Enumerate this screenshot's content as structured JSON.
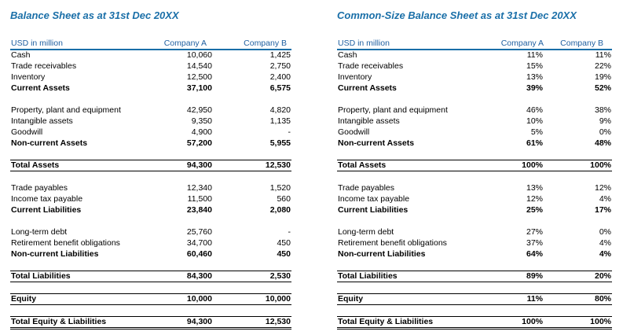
{
  "left": {
    "title": "Balance Sheet as at 31st Dec 20XX",
    "header": {
      "label": "USD in million",
      "a": "Company A",
      "b": "Company B"
    },
    "rows": [
      {
        "label": "Cash",
        "a": "10,060",
        "b": "1,425"
      },
      {
        "label": "Trade receivables",
        "a": "14,540",
        "b": "2,750"
      },
      {
        "label": "Inventory",
        "a": "12,500",
        "b": "2,400"
      },
      {
        "label": "Current Assets",
        "a": "37,100",
        "b": "6,575"
      },
      {
        "label": "Property, plant and equipment",
        "a": "42,950",
        "b": "4,820"
      },
      {
        "label": "Intangible assets",
        "a": "9,350",
        "b": "1,135"
      },
      {
        "label": "Goodwill",
        "a": "4,900",
        "b": "-"
      },
      {
        "label": "Non-current Assets",
        "a": "57,200",
        "b": "5,955"
      },
      {
        "label": "Total Assets",
        "a": "94,300",
        "b": "12,530"
      },
      {
        "label": "Trade payables",
        "a": "12,340",
        "b": "1,520"
      },
      {
        "label": "Income tax payable",
        "a": "11,500",
        "b": "560"
      },
      {
        "label": "Current Liabilities",
        "a": "23,840",
        "b": "2,080"
      },
      {
        "label": "Long-term debt",
        "a": "25,760",
        "b": "-"
      },
      {
        "label": "Retirement benefit obligations",
        "a": "34,700",
        "b": "450"
      },
      {
        "label": "Non-current Liabilities",
        "a": "60,460",
        "b": "450"
      },
      {
        "label": "Total Liabilities",
        "a": "84,300",
        "b": "2,530"
      },
      {
        "label": "Equity",
        "a": "10,000",
        "b": "10,000"
      },
      {
        "label": "Total Equity & Liabilities",
        "a": "94,300",
        "b": "12,530"
      }
    ]
  },
  "right": {
    "title": "Common-Size Balance Sheet as at 31st Dec 20XX",
    "header": {
      "label": "USD in million",
      "a": "Company A",
      "b": "Company B"
    },
    "rows": [
      {
        "label": "Cash",
        "a": "11%",
        "b": "11%"
      },
      {
        "label": "Trade receivables",
        "a": "15%",
        "b": "22%"
      },
      {
        "label": "Inventory",
        "a": "13%",
        "b": "19%"
      },
      {
        "label": "Current Assets",
        "a": "39%",
        "b": "52%"
      },
      {
        "label": "Property, plant and equipment",
        "a": "46%",
        "b": "38%"
      },
      {
        "label": "Intangible assets",
        "a": "10%",
        "b": "9%"
      },
      {
        "label": "Goodwill",
        "a": "5%",
        "b": "0%"
      },
      {
        "label": "Non-current Assets",
        "a": "61%",
        "b": "48%"
      },
      {
        "label": "Total Assets",
        "a": "100%",
        "b": "100%"
      },
      {
        "label": "Trade payables",
        "a": "13%",
        "b": "12%"
      },
      {
        "label": "Income tax payable",
        "a": "12%",
        "b": "4%"
      },
      {
        "label": "Current Liabilities",
        "a": "25%",
        "b": "17%"
      },
      {
        "label": "Long-term debt",
        "a": "27%",
        "b": "0%"
      },
      {
        "label": "Retirement benefit obligations",
        "a": "37%",
        "b": "4%"
      },
      {
        "label": "Non-current Liabilities",
        "a": "64%",
        "b": "4%"
      },
      {
        "label": "Total Liabilities",
        "a": "89%",
        "b": "20%"
      },
      {
        "label": "Equity",
        "a": "11%",
        "b": "80%"
      },
      {
        "label": "Total Equity & Liabilities",
        "a": "100%",
        "b": "100%"
      }
    ]
  }
}
